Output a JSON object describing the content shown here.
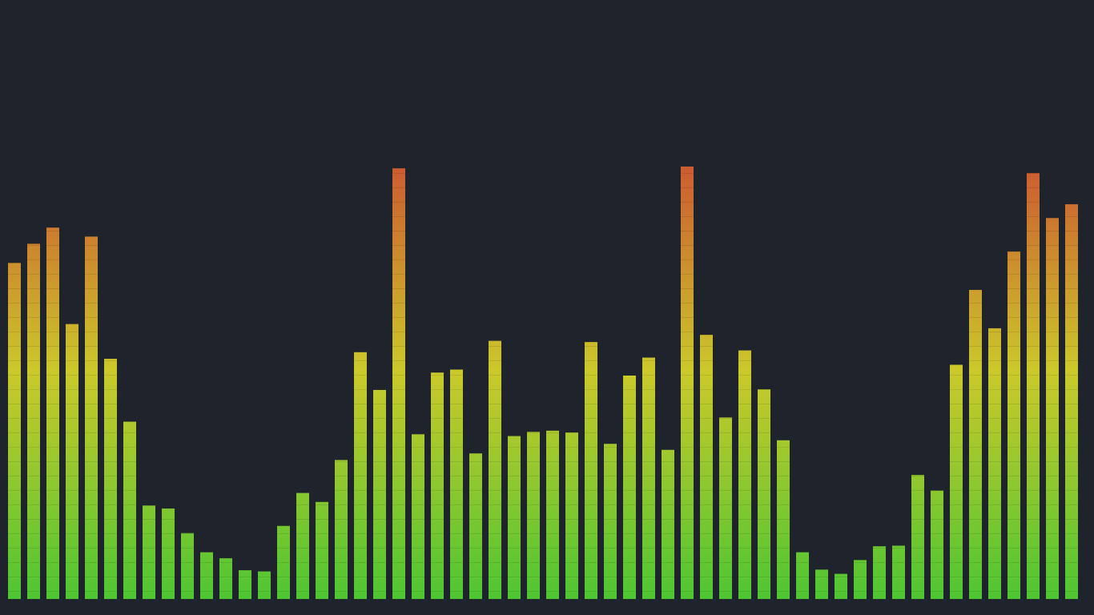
{
  "app": {
    "background": "#1f232b"
  },
  "chart_data": {
    "type": "bar",
    "title": "",
    "xlabel": "",
    "ylabel": "",
    "ylim": [
      0,
      100
    ],
    "colors": {
      "low": "#4ec633",
      "mid": "#cbc92b",
      "high": "#cd4f32",
      "segment_line": "rgba(0,0,0,0.10)"
    },
    "values": [
      56.1,
      59.3,
      62.0,
      45.9,
      60.5,
      40.1,
      29.6,
      15.6,
      15.1,
      11.0,
      7.8,
      6.8,
      4.8,
      4.6,
      12.2,
      17.7,
      16.2,
      23.2,
      41.2,
      34.9,
      71.9,
      27.5,
      37.8,
      38.3,
      24.3,
      43.1,
      27.2,
      27.9,
      28.1,
      27.8,
      42.9,
      25.9,
      37.3,
      40.3,
      24.9,
      72.2,
      44.1,
      30.3,
      41.5,
      35.0,
      26.5,
      7.8,
      4.9,
      4.2,
      6.5,
      8.8,
      8.9,
      20.7,
      18.1,
      39.1,
      51.6,
      45.2,
      58.0,
      71.1,
      63.6,
      65.9
    ]
  }
}
